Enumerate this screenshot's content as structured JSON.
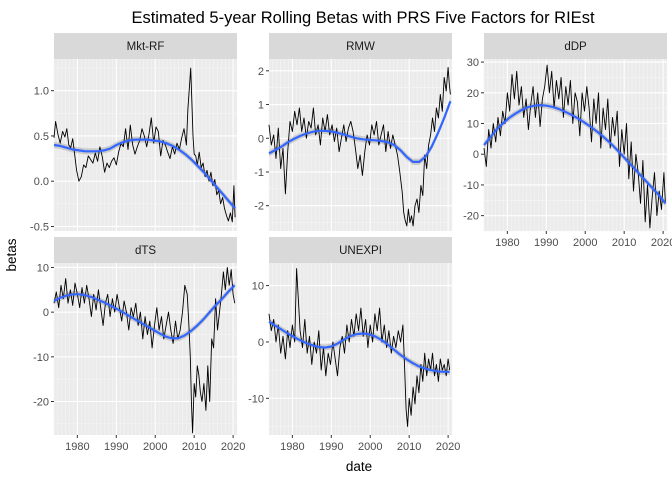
{
  "title": "Estimated 5-year Rolling Betas with PRS Five Factors for RIEst",
  "xlabel": "date",
  "ylabel": "betas",
  "colors": {
    "panel_bg": "#ebebeb",
    "grid_major": "#ffffff",
    "grid_minor": "#f5f5f5",
    "strip_bg": "#d9d9d9",
    "line": "#000000",
    "smooth": "#3366ff",
    "ribbon": "#999999",
    "axis_text": "#4d4d4d"
  },
  "chart_data": {
    "type": "line",
    "facet_layout": "3 columns, x axis shared per column, free y scales",
    "grid": true,
    "series_line": "rolling beta (black line)",
    "series_smooth": "loess smooth with confidence ribbon (blue)",
    "x_ticks": [
      "1980",
      "1990",
      "2000",
      "2010",
      "2020"
    ],
    "xlim": [
      1974,
      2021
    ],
    "panels": [
      {
        "name": "Mkt-RF",
        "ylim": [
          -0.55,
          1.35
        ],
        "y_ticks": [
          -0.5,
          0.0,
          0.5,
          1.0
        ],
        "y_tick_labels": [
          "-0.5",
          "0.0",
          "0.5",
          "1.0"
        ],
        "x": [
          1974.0,
          1974.4,
          1975.0,
          1975.6,
          1976.2,
          1976.8,
          1977.3,
          1977.8,
          1978.3,
          1978.8,
          1979.3,
          1979.8,
          1980.4,
          1981.0,
          1981.6,
          1982.2,
          1982.8,
          1983.4,
          1984.0,
          1984.6,
          1985.2,
          1985.8,
          1986.4,
          1987.0,
          1987.6,
          1988.2,
          1988.8,
          1989.4,
          1990.0,
          1990.6,
          1991.2,
          1991.8,
          1992.4,
          1993.0,
          1993.6,
          1994.2,
          1994.8,
          1995.4,
          1996.0,
          1996.6,
          1997.2,
          1997.8,
          1998.4,
          1999.0,
          1999.6,
          2000.2,
          2000.8,
          2001.4,
          2002.0,
          2002.6,
          2003.2,
          2003.8,
          2004.4,
          2005.0,
          2005.6,
          2006.2,
          2006.8,
          2007.4,
          2008.0,
          2008.4,
          2008.8,
          2009.1,
          2009.4,
          2009.7,
          2010.0,
          2010.4,
          2010.8,
          2011.3,
          2011.8,
          2012.3,
          2012.8,
          2013.3,
          2013.8,
          2014.3,
          2014.8,
          2015.3,
          2015.8,
          2016.3,
          2016.8,
          2017.3,
          2017.8,
          2018.3,
          2018.8,
          2019.3,
          2019.8,
          2020.2,
          2020.5
        ],
        "y": [
          0.48,
          0.66,
          0.52,
          0.42,
          0.55,
          0.49,
          0.58,
          0.4,
          0.37,
          0.47,
          0.3,
          0.12,
          0.0,
          0.05,
          0.18,
          0.15,
          0.28,
          0.24,
          0.2,
          0.31,
          0.22,
          0.38,
          0.27,
          0.1,
          0.2,
          0.15,
          0.22,
          0.26,
          0.18,
          0.32,
          0.42,
          0.38,
          0.58,
          0.35,
          0.62,
          0.4,
          0.3,
          0.38,
          0.45,
          0.58,
          0.5,
          0.38,
          0.52,
          0.7,
          0.42,
          0.6,
          0.55,
          0.28,
          0.45,
          0.4,
          0.32,
          0.25,
          0.38,
          0.3,
          0.42,
          0.35,
          0.48,
          0.58,
          0.4,
          0.8,
          1.05,
          1.25,
          0.9,
          0.5,
          0.3,
          0.28,
          0.18,
          0.32,
          0.15,
          0.2,
          0.05,
          0.12,
          0.0,
          0.1,
          -0.05,
          0.02,
          -0.15,
          -0.1,
          -0.25,
          -0.18,
          -0.3,
          -0.38,
          -0.44,
          -0.35,
          -0.45,
          -0.05,
          -0.4
        ],
        "smooth": [
          0.4,
          0.39,
          0.37,
          0.35,
          0.34,
          0.33,
          0.33,
          0.33,
          0.34,
          0.36,
          0.4,
          0.43,
          0.45,
          0.46,
          0.46,
          0.46,
          0.45,
          0.44,
          0.42,
          0.39,
          0.35,
          0.3,
          0.24,
          0.17,
          0.1,
          0.02,
          -0.06,
          -0.14,
          -0.22,
          -0.3
        ]
      },
      {
        "name": "RMW",
        "ylim": [
          -2.75,
          2.35
        ],
        "y_ticks": [
          -2,
          -1,
          0,
          1,
          2
        ],
        "y_tick_labels": [
          "-2",
          "-1",
          "0",
          "1",
          "2"
        ],
        "x": [
          1974.0,
          1974.6,
          1975.2,
          1975.8,
          1976.4,
          1977.0,
          1977.6,
          1978.2,
          1978.8,
          1979.4,
          1980.0,
          1980.6,
          1981.2,
          1981.8,
          1982.4,
          1983.0,
          1983.6,
          1984.2,
          1984.8,
          1985.4,
          1986.0,
          1986.6,
          1987.2,
          1987.8,
          1988.4,
          1989.0,
          1989.6,
          1990.2,
          1990.8,
          1991.4,
          1992.0,
          1992.6,
          1993.2,
          1993.8,
          1994.4,
          1995.0,
          1995.6,
          1996.2,
          1996.8,
          1997.4,
          1998.0,
          1998.6,
          1999.2,
          1999.8,
          2000.4,
          2001.0,
          2001.6,
          2002.2,
          2002.8,
          2003.4,
          2004.0,
          2004.6,
          2005.2,
          2005.8,
          2006.4,
          2007.0,
          2007.6,
          2008.2,
          2008.6,
          2009.0,
          2009.4,
          2009.8,
          2010.2,
          2010.6,
          2011.0,
          2011.5,
          2012.0,
          2012.5,
          2013.0,
          2013.5,
          2014.0,
          2014.5,
          2015.0,
          2015.5,
          2016.0,
          2016.5,
          2017.0,
          2017.5,
          2018.0,
          2018.5,
          2019.0,
          2019.5,
          2020.0,
          2020.3,
          2020.6
        ],
        "y": [
          0.4,
          -0.2,
          0.1,
          -0.6,
          0.3,
          -0.9,
          -0.3,
          -1.65,
          -0.4,
          0.5,
          0.2,
          0.8,
          0.4,
          0.9,
          0.2,
          0.6,
          0.0,
          0.5,
          0.3,
          0.9,
          0.1,
          0.4,
          -0.2,
          0.6,
          0.2,
          0.7,
          0.1,
          0.4,
          -0.1,
          0.3,
          -0.4,
          0.0,
          0.4,
          -0.1,
          0.3,
          0.5,
          0.2,
          -0.3,
          -0.9,
          -0.5,
          -1.1,
          -0.4,
          0.1,
          -0.2,
          0.4,
          0.1,
          0.5,
          -0.2,
          0.1,
          0.4,
          -0.4,
          0.2,
          -0.3,
          0.1,
          -0.2,
          -0.5,
          -1.0,
          -1.6,
          -2.2,
          -2.45,
          -2.6,
          -2.1,
          -2.5,
          -2.3,
          -2.6,
          -2.0,
          -1.8,
          -2.2,
          -1.4,
          -1.7,
          -0.5,
          -0.9,
          -0.2,
          0.1,
          0.6,
          0.2,
          0.9,
          0.6,
          1.3,
          0.8,
          1.8,
          1.4,
          2.1,
          1.6,
          1.3
        ],
        "smooth": [
          -0.45,
          -0.35,
          -0.25,
          -0.12,
          -0.02,
          0.07,
          0.14,
          0.19,
          0.22,
          0.22,
          0.2,
          0.16,
          0.11,
          0.05,
          0.0,
          -0.03,
          -0.05,
          -0.06,
          -0.08,
          -0.12,
          -0.2,
          -0.35,
          -0.55,
          -0.7,
          -0.7,
          -0.55,
          -0.25,
          0.15,
          0.6,
          1.1
        ]
      },
      {
        "name": "dDP",
        "ylim": [
          -25,
          31
        ],
        "y_ticks": [
          -20,
          -10,
          0,
          10,
          20,
          30
        ],
        "y_tick_labels": [
          "-20",
          "-10",
          "0",
          "10",
          "20",
          "30"
        ],
        "x": [
          1974.0,
          1974.6,
          1975.2,
          1975.8,
          1976.4,
          1977.0,
          1977.6,
          1978.2,
          1978.8,
          1979.4,
          1980.0,
          1980.6,
          1981.2,
          1981.8,
          1982.4,
          1983.0,
          1983.6,
          1984.2,
          1984.8,
          1985.4,
          1986.0,
          1986.6,
          1987.2,
          1987.8,
          1988.4,
          1989.0,
          1989.6,
          1990.2,
          1990.8,
          1991.4,
          1992.0,
          1992.6,
          1993.2,
          1993.8,
          1994.4,
          1995.0,
          1995.6,
          1996.2,
          1996.8,
          1997.4,
          1998.0,
          1998.6,
          1999.2,
          1999.8,
          2000.4,
          2001.0,
          2001.6,
          2002.2,
          2002.8,
          2003.4,
          2004.0,
          2004.6,
          2005.2,
          2005.8,
          2006.4,
          2007.0,
          2007.6,
          2008.2,
          2008.8,
          2009.4,
          2010.0,
          2010.6,
          2011.2,
          2011.8,
          2012.4,
          2013.0,
          2013.6,
          2014.2,
          2014.8,
          2015.4,
          2016.0,
          2016.6,
          2017.2,
          2017.8,
          2018.4,
          2019.0,
          2019.6,
          2020.2,
          2020.6
        ],
        "y": [
          2.0,
          -4.0,
          8.0,
          2.0,
          10.0,
          4.0,
          12.0,
          6.0,
          14.0,
          10.0,
          20.0,
          14.0,
          26.0,
          18.0,
          27.0,
          16.0,
          22.0,
          12.0,
          18.0,
          8.0,
          16.0,
          22.0,
          12.0,
          20.0,
          9.0,
          18.0,
          22.0,
          29.0,
          20.0,
          27.0,
          15.0,
          24.0,
          18.0,
          25.0,
          12.0,
          22.0,
          16.0,
          24.0,
          10.0,
          20.0,
          17.0,
          6.0,
          20.0,
          14.0,
          22.0,
          15.0,
          4.0,
          18.0,
          10.0,
          20.0,
          2.0,
          15.0,
          8.0,
          18.0,
          2.0,
          12.0,
          6.0,
          14.0,
          -4.0,
          8.0,
          0.0,
          10.0,
          -8.0,
          4.0,
          -12.0,
          0.0,
          -6.0,
          -16.0,
          -2.0,
          -22.0,
          -10.0,
          -24.0,
          -14.0,
          -6.0,
          -20.0,
          -12.0,
          -18.0,
          -6.0,
          -16.0
        ],
        "smooth": [
          3.0,
          5.5,
          8.0,
          10.0,
          11.8,
          13.2,
          14.4,
          15.3,
          15.8,
          16.0,
          15.8,
          15.4,
          14.7,
          13.8,
          12.8,
          11.7,
          10.4,
          9.0,
          7.5,
          5.8,
          4.0,
          2.0,
          -0.2,
          -2.4,
          -4.6,
          -6.8,
          -9.0,
          -11.2,
          -13.4,
          -16.0
        ]
      },
      {
        "name": "dTS",
        "ylim": [
          -27.5,
          11.0
        ],
        "y_ticks": [
          -20,
          -10,
          0,
          10
        ],
        "y_tick_labels": [
          "-20",
          "-10",
          "0",
          "10"
        ],
        "x": [
          1974.0,
          1974.6,
          1975.2,
          1975.8,
          1976.4,
          1977.0,
          1977.6,
          1978.2,
          1978.8,
          1979.4,
          1980.0,
          1980.6,
          1981.2,
          1981.8,
          1982.4,
          1983.0,
          1983.6,
          1984.2,
          1984.8,
          1985.4,
          1986.0,
          1986.6,
          1987.2,
          1987.8,
          1988.4,
          1989.0,
          1989.6,
          1990.2,
          1990.8,
          1991.4,
          1992.0,
          1992.6,
          1993.2,
          1993.8,
          1994.4,
          1995.0,
          1995.6,
          1996.2,
          1996.8,
          1997.4,
          1998.0,
          1998.6,
          1999.2,
          1999.8,
          2000.4,
          2001.0,
          2001.6,
          2002.2,
          2002.8,
          2003.4,
          2004.0,
          2004.6,
          2005.2,
          2005.8,
          2006.4,
          2007.0,
          2007.6,
          2008.2,
          2008.6,
          2009.0,
          2009.3,
          2009.6,
          2010.0,
          2010.4,
          2010.8,
          2011.2,
          2011.6,
          2012.0,
          2012.5,
          2013.0,
          2013.5,
          2014.0,
          2014.5,
          2015.0,
          2015.5,
          2016.0,
          2016.5,
          2017.0,
          2017.5,
          2018.0,
          2018.5,
          2019.0,
          2019.5,
          2020.0,
          2020.4
        ],
        "y": [
          2.0,
          4.5,
          1.0,
          6.0,
          3.0,
          7.5,
          2.0,
          5.0,
          1.5,
          6.5,
          4.0,
          1.0,
          5.5,
          2.0,
          6.0,
          3.0,
          -1.0,
          4.0,
          0.5,
          5.0,
          1.0,
          -3.0,
          2.0,
          4.0,
          -1.0,
          3.0,
          0.0,
          4.0,
          1.0,
          -2.0,
          2.5,
          0.0,
          -4.0,
          1.0,
          -1.0,
          2.0,
          -3.0,
          0.0,
          -6.0,
          -1.0,
          -5.0,
          -2.0,
          -8.0,
          -3.0,
          1.0,
          -4.0,
          -1.0,
          -6.0,
          -3.0,
          0.0,
          -4.0,
          -7.0,
          -2.0,
          -6.0,
          -4.0,
          0.0,
          6.0,
          4.0,
          -2.0,
          -10.0,
          -20.0,
          -27.0,
          -16.0,
          -19.0,
          -12.0,
          -14.0,
          -18.0,
          -20.0,
          -16.0,
          -22.0,
          -12.0,
          -20.0,
          -6.0,
          -8.0,
          3.0,
          -4.0,
          0.0,
          4.0,
          9.0,
          5.0,
          10.0,
          6.0,
          9.5,
          4.0,
          2.0
        ],
        "smooth": [
          2.5,
          3.2,
          3.7,
          4.0,
          4.0,
          3.8,
          3.4,
          2.8,
          2.2,
          1.5,
          0.8,
          0.0,
          -0.8,
          -1.6,
          -2.4,
          -3.2,
          -4.0,
          -4.8,
          -5.5,
          -5.9,
          -5.8,
          -5.2,
          -4.2,
          -3.0,
          -1.6,
          0.0,
          1.6,
          3.0,
          4.6,
          6.0
        ]
      },
      {
        "name": "UNEXPI",
        "ylim": [
          -16.5,
          14.0
        ],
        "y_ticks": [
          -10,
          0,
          10
        ],
        "y_tick_labels": [
          "-10",
          "0",
          "10"
        ],
        "x": [
          1974.0,
          1974.6,
          1975.2,
          1975.8,
          1976.4,
          1977.0,
          1977.6,
          1978.2,
          1978.8,
          1979.4,
          1980.0,
          1980.6,
          1981.1,
          1981.5,
          1982.0,
          1982.6,
          1983.2,
          1983.8,
          1984.4,
          1985.0,
          1985.6,
          1986.2,
          1986.8,
          1987.4,
          1988.0,
          1988.6,
          1989.2,
          1989.8,
          1990.4,
          1991.0,
          1991.6,
          1992.2,
          1992.8,
          1993.4,
          1994.0,
          1994.6,
          1995.2,
          1995.8,
          1996.4,
          1997.0,
          1997.6,
          1998.2,
          1998.8,
          1999.4,
          2000.0,
          2000.6,
          2001.2,
          2001.8,
          2002.4,
          2003.0,
          2003.6,
          2004.2,
          2004.8,
          2005.4,
          2006.0,
          2006.6,
          2007.2,
          2007.8,
          2008.4,
          2008.8,
          2009.2,
          2009.6,
          2010.0,
          2010.5,
          2011.0,
          2011.5,
          2012.0,
          2012.5,
          2013.0,
          2013.5,
          2014.0,
          2014.5,
          2015.0,
          2015.5,
          2016.0,
          2016.5,
          2017.0,
          2017.5,
          2018.0,
          2018.5,
          2019.0,
          2019.5,
          2020.0,
          2020.4
        ],
        "y": [
          5.0,
          2.0,
          4.0,
          0.0,
          3.0,
          -2.0,
          1.0,
          -3.0,
          2.0,
          -1.0,
          3.0,
          0.0,
          13.0,
          8.0,
          2.0,
          -1.0,
          4.0,
          -2.0,
          1.0,
          -4.0,
          0.0,
          -2.0,
          2.0,
          -5.0,
          -1.0,
          -6.0,
          -2.0,
          -4.0,
          0.0,
          -3.0,
          -6.0,
          -1.0,
          1.0,
          -2.0,
          3.0,
          0.0,
          4.0,
          1.0,
          5.0,
          2.0,
          6.0,
          1.0,
          4.0,
          -1.0,
          3.0,
          0.0,
          5.0,
          2.0,
          6.0,
          0.0,
          3.0,
          -1.0,
          2.0,
          -2.0,
          1.0,
          -1.0,
          2.0,
          0.0,
          3.0,
          -4.0,
          -12.0,
          -15.0,
          -10.0,
          -13.0,
          -8.0,
          -11.0,
          -6.0,
          -9.0,
          -4.0,
          -7.0,
          -2.0,
          -6.0,
          -3.0,
          -5.0,
          -2.0,
          -6.0,
          -4.0,
          -7.0,
          -3.0,
          -5.0,
          -4.0,
          -6.0,
          -3.0,
          -5.0
        ],
        "smooth": [
          3.6,
          2.9,
          2.2,
          1.5,
          0.9,
          0.3,
          -0.2,
          -0.6,
          -0.9,
          -1.0,
          -0.8,
          -0.3,
          0.4,
          1.0,
          1.4,
          1.5,
          1.4,
          1.0,
          0.4,
          -0.4,
          -1.3,
          -2.2,
          -3.0,
          -3.7,
          -4.3,
          -4.7,
          -5.0,
          -5.2,
          -5.3,
          -5.3
        ]
      }
    ]
  }
}
